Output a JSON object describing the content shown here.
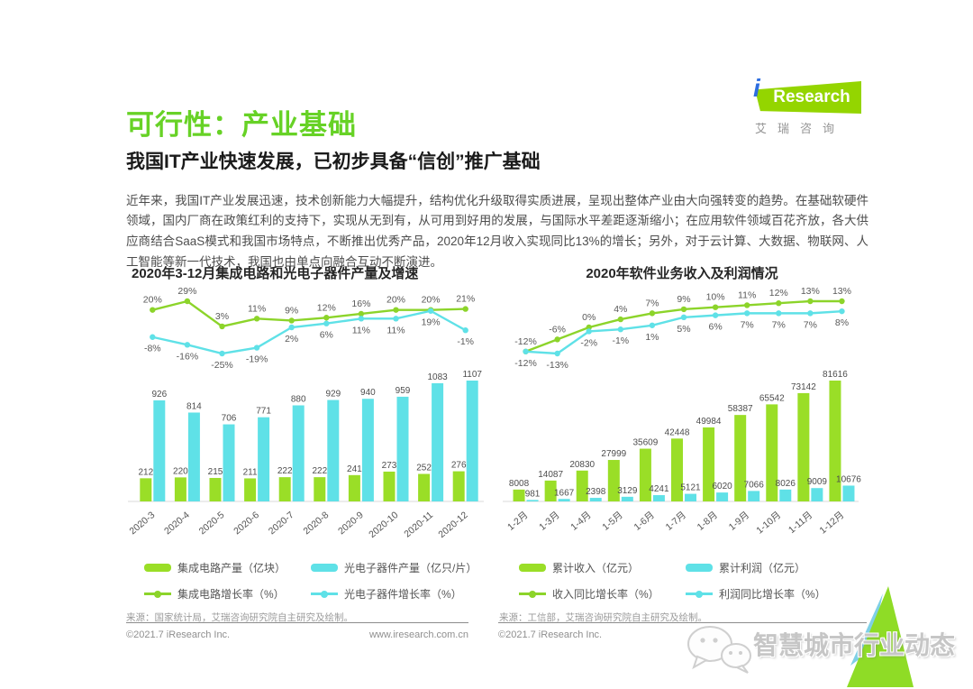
{
  "page": {
    "title": "可行性：产业基础",
    "subtitle": "我国IT产业快速发展，已初步具备“信创”推广基础",
    "paragraph": "近年来，我国IT产业发展迅速，技术创新能力大幅提升，结构优化升级取得实质进展，呈现出整体产业由大向强转变的趋势。在基础软硬件领域，国内厂商在政策红利的支持下，实现从无到有，从可用到好用的发展，与国际水平差距逐渐缩小；在应用软件领域百花齐放，各大供应商结合SaaS模式和我国市场特点，不断推出优秀产品，2020年12月收入实现同比13%的增长；另外，对于云计算、大数据、物联网、人工智能等新一代技术，我国也由单点向融合互动不断演进。",
    "logo": {
      "i": "i",
      "brand": "Research",
      "caption": "艾瑞咨询"
    },
    "footer": {
      "copyright_left": "©2021.7 iResearch Inc.",
      "site": "www.iresearch.com.cn",
      "copyright_right": "©2021.7 iResearch Inc."
    },
    "watermark": {
      "icon": "wechat-icon",
      "text": "智慧城市行业动态"
    }
  },
  "colors": {
    "title_green": "#67d226",
    "chart_green": "#9ade27",
    "chart_cyan": "#5fe1e7",
    "logo_green": "#94d500",
    "logo_blue": "#2e6ee0",
    "corner_green": "#8fdc26",
    "corner_teal": "#7fd0e6"
  },
  "chart_data": [
    {
      "type": "combo-bar-line",
      "title": "2020年3-12月集成电路和光电子器件产量及增速",
      "categories": [
        "2020-3",
        "2020-4",
        "2020-5",
        "2020-6",
        "2020-7",
        "2020-8",
        "2020-9",
        "2020-10",
        "2020-11",
        "2020-12"
      ],
      "bar_series": [
        {
          "name": "集成电路产量（亿块）",
          "color": "#9ade27",
          "values": [
            212,
            220,
            215,
            211,
            222,
            222,
            241,
            273,
            252,
            276
          ]
        },
        {
          "name": "光电子器件产量（亿只/片）",
          "color": "#5fe1e7",
          "values": [
            926,
            814,
            706,
            771,
            880,
            929,
            940,
            959,
            1083,
            1107
          ]
        }
      ],
      "line_series": [
        {
          "name": "集成电路增长率（%）",
          "color": "#8cd42a",
          "values": [
            20,
            29,
            3,
            11,
            9,
            12,
            16,
            20,
            20,
            21
          ]
        },
        {
          "name": "光电子器件增长率（%）",
          "color": "#5fe1e7",
          "values": [
            -8,
            -16,
            -25,
            -19,
            2,
            6,
            11,
            11,
            19,
            -1
          ]
        }
      ],
      "ylabel": "",
      "grid": false,
      "legend_position": "bottom",
      "source": "来源：国家统计局，艾瑞咨询研究院自主研究及绘制。"
    },
    {
      "type": "combo-bar-line",
      "title": "2020年软件业务收入及利润情况",
      "categories": [
        "1-2月",
        "1-3月",
        "1-4月",
        "1-5月",
        "1-6月",
        "1-7月",
        "1-8月",
        "1-9月",
        "1-10月",
        "1-11月",
        "1-12月"
      ],
      "bar_series": [
        {
          "name": "累计收入（亿元）",
          "color": "#9ade27",
          "values": [
            8008,
            14087,
            20830,
            27999,
            35609,
            42448,
            49984,
            58387,
            65542,
            73142,
            81616
          ]
        },
        {
          "name": "累计利润（亿元）",
          "color": "#5fe1e7",
          "values": [
            981,
            1667,
            2398,
            3129,
            4241,
            5121,
            6020,
            7066,
            8026,
            9009,
            10676
          ]
        }
      ],
      "line_series": [
        {
          "name": "收入同比增长率（%）",
          "color": "#8cd42a",
          "values": [
            -12,
            -6,
            0,
            4,
            7,
            9,
            10,
            11,
            12,
            13,
            13
          ]
        },
        {
          "name": "利润同比增长率（%）",
          "color": "#5fe1e7",
          "values": [
            -12,
            -13,
            -2,
            -1,
            1,
            5,
            6,
            7,
            7,
            7,
            8
          ]
        }
      ],
      "ylabel": "",
      "grid": false,
      "legend_position": "bottom",
      "source": "来源：工信部，艾瑞咨询研究院自主研究及绘制。"
    }
  ]
}
